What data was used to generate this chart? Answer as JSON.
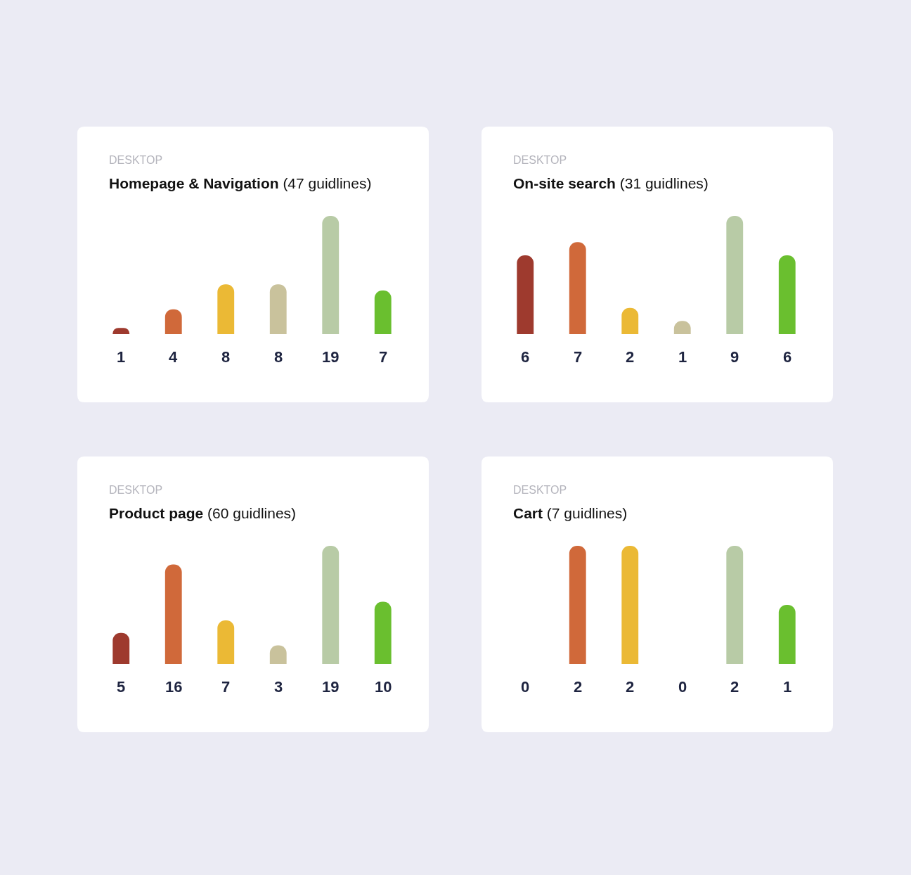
{
  "chart_data": [
    {
      "type": "bar",
      "subtitle": "DESKTOP",
      "title": "Homepage & Navigation",
      "annotations": [
        "(47 guidlines)"
      ],
      "categories": [
        null,
        null,
        null,
        null,
        null,
        null
      ],
      "values": [
        1,
        4,
        8,
        8,
        19,
        7
      ],
      "colors": [
        "#9e3a2e",
        "#d0693a",
        "#ebb935",
        "#c9c29c",
        "#b8cba6",
        "#6abf2f"
      ],
      "data_labels": true
    },
    {
      "type": "bar",
      "subtitle": "DESKTOP",
      "title": "On-site search",
      "annotations": [
        "(31 guidlines)"
      ],
      "categories": [
        null,
        null,
        null,
        null,
        null,
        null
      ],
      "values": [
        6,
        7,
        2,
        1,
        9,
        6
      ],
      "colors": [
        "#9e3a2e",
        "#d0693a",
        "#ebb935",
        "#c9c29c",
        "#b8cba6",
        "#6abf2f"
      ],
      "data_labels": true
    },
    {
      "type": "bar",
      "subtitle": "DESKTOP",
      "title": "Product page",
      "annotations": [
        "(60 guidlines)"
      ],
      "categories": [
        null,
        null,
        null,
        null,
        null,
        null
      ],
      "values": [
        5,
        16,
        7,
        3,
        19,
        10
      ],
      "colors": [
        "#9e3a2e",
        "#d0693a",
        "#ebb935",
        "#c9c29c",
        "#b8cba6",
        "#6abf2f"
      ],
      "data_labels": true
    },
    {
      "type": "bar",
      "subtitle": "DESKTOP",
      "title": "Cart",
      "annotations": [
        "(7 guidlines)"
      ],
      "categories": [
        null,
        null,
        null,
        null,
        null,
        null
      ],
      "values": [
        0,
        2,
        2,
        0,
        2,
        1
      ],
      "colors": [
        "#9e3a2e",
        "#d0693a",
        "#ebb935",
        "#c9c29c",
        "#b8cba6",
        "#6abf2f"
      ],
      "data_labels": true
    }
  ]
}
